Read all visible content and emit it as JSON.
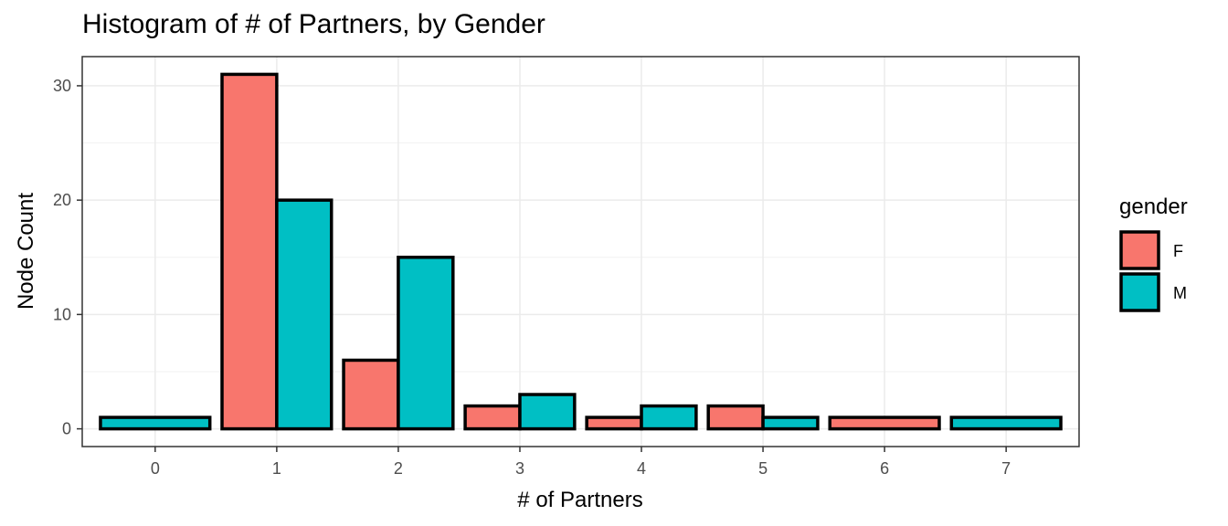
{
  "chart_data": {
    "type": "bar",
    "title": "Histogram of # of Partners, by Gender",
    "xlabel": "# of Partners",
    "ylabel": "Node Count",
    "categories": [
      "0",
      "1",
      "2",
      "3",
      "4",
      "5",
      "6",
      "7"
    ],
    "series": [
      {
        "name": "F",
        "color": "#F8766D",
        "values": [
          0,
          31,
          6,
          2,
          1,
          2,
          1,
          0
        ]
      },
      {
        "name": "M",
        "color": "#00BFC4",
        "values": [
          1,
          20,
          15,
          3,
          2,
          1,
          0,
          1
        ]
      }
    ],
    "y_ticks": [
      0,
      10,
      20,
      30
    ],
    "ylim": [
      -1.55,
      32.55
    ],
    "grid": true,
    "legend": {
      "title": "gender",
      "position": "right"
    }
  }
}
